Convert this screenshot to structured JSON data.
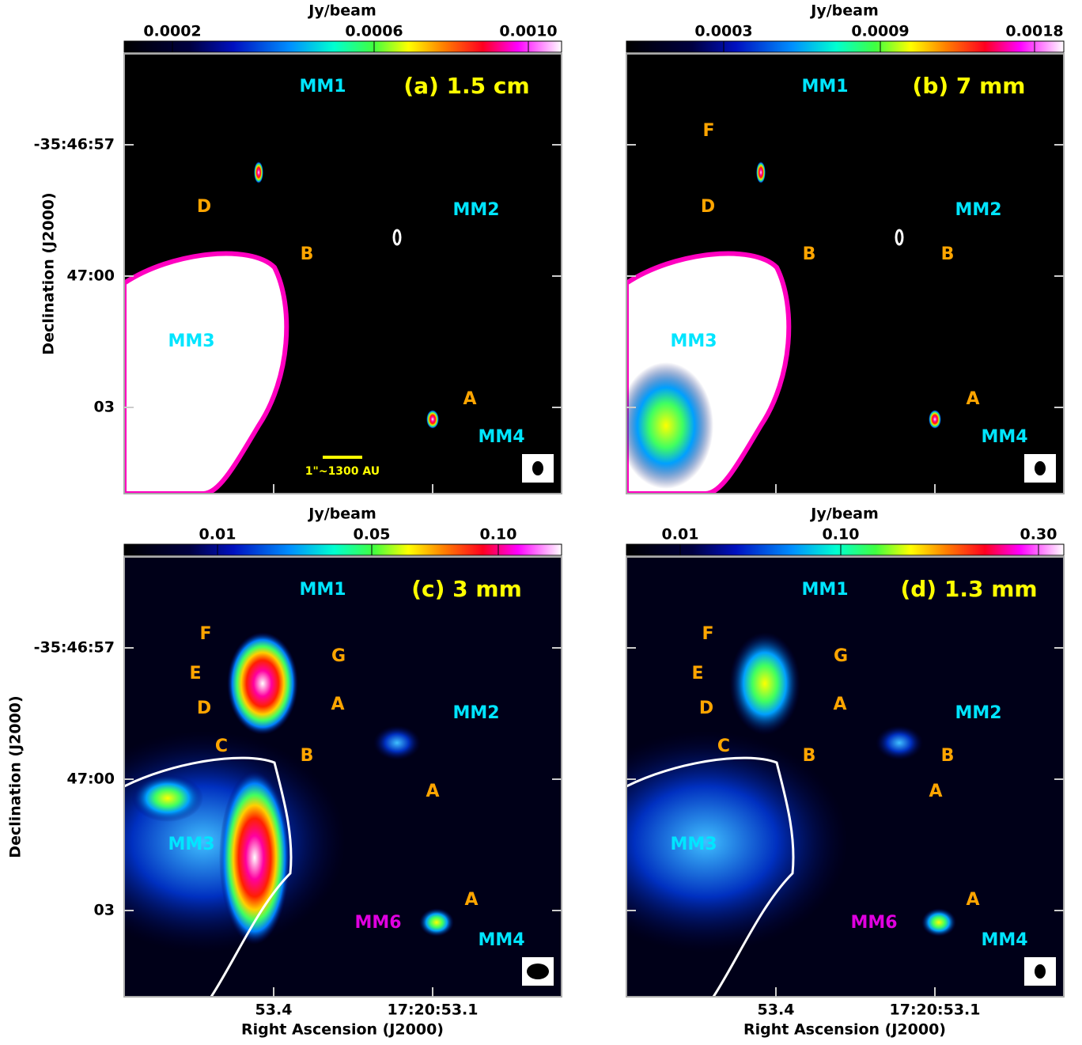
{
  "axes": {
    "y_label": "Declination (J2000)",
    "x_label": "Right Ascension (J2000)",
    "y_ticks": [
      "-35:46:57",
      "47:00",
      "03"
    ],
    "x_ticks": [
      "53.4",
      "17:20:53.1"
    ]
  },
  "scale_bar": "1\"~1300 AU",
  "panels": [
    {
      "title": "(a) 1.5 cm",
      "colorbar": {
        "unit": "Jy/beam",
        "ticks": [
          "0.0002",
          "0.0006",
          "0.0010"
        ]
      },
      "labels": [
        "MM1",
        "MM2",
        "MM3",
        "MM4",
        "D",
        "B",
        "A"
      ]
    },
    {
      "title": "(b) 7 mm",
      "colorbar": {
        "unit": "Jy/beam",
        "ticks": [
          "0.0003",
          "0.0009",
          "0.0018"
        ]
      },
      "labels": [
        "MM1",
        "MM2",
        "MM3",
        "MM4",
        "F",
        "D",
        "B",
        "B",
        "A"
      ]
    },
    {
      "title": "(c) 3 mm",
      "colorbar": {
        "unit": "Jy/beam",
        "ticks": [
          "0.01",
          "0.05",
          "0.10"
        ]
      },
      "labels": [
        "MM1",
        "MM2",
        "MM3",
        "MM4",
        "F",
        "G",
        "E",
        "A",
        "D",
        "C",
        "B",
        "A",
        "MM6",
        "A"
      ]
    },
    {
      "title": "(d) 1.3 mm",
      "colorbar": {
        "unit": "Jy/beam",
        "ticks": [
          "0.01",
          "0.10",
          "0.30"
        ]
      },
      "labels": [
        "MM1",
        "MM2",
        "MM3",
        "MM4",
        "F",
        "G",
        "E",
        "A",
        "D",
        "C",
        "B",
        "B",
        "A",
        "MM6",
        "A"
      ]
    }
  ]
}
